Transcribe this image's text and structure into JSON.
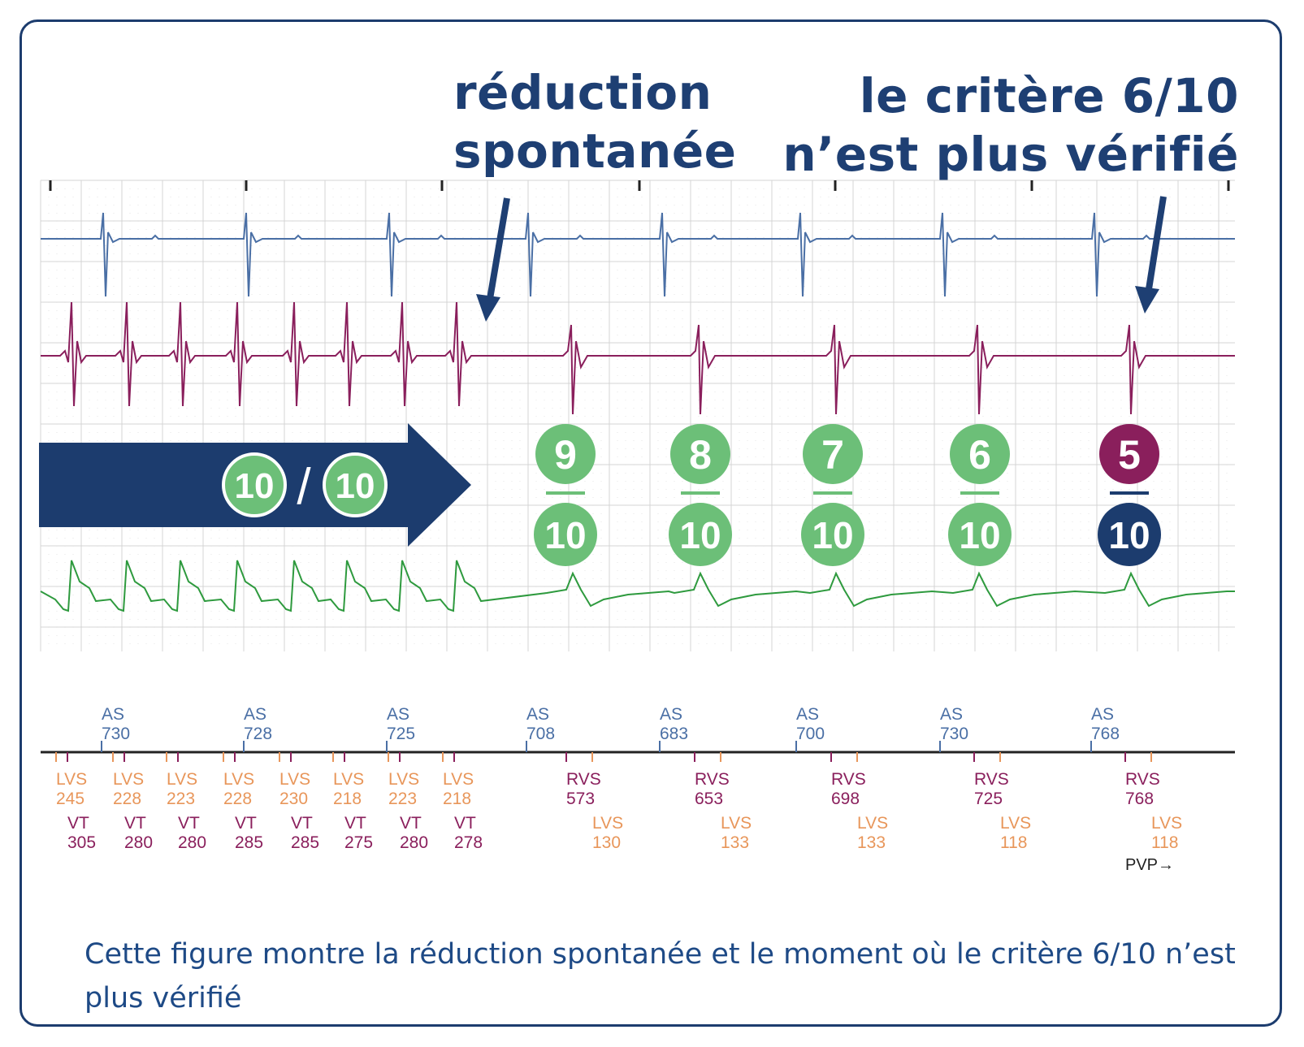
{
  "heading_left": [
    "réduction",
    "spontanée"
  ],
  "heading_right": [
    "le critère 6/10",
    "n’est plus vérifié"
  ],
  "arrow_label": {
    "num": "10",
    "sep": "/",
    "den": "10"
  },
  "counters": [
    {
      "num": "9",
      "den": "10",
      "num_color": "#6cbf78",
      "den_color": "#6cbf78"
    },
    {
      "num": "8",
      "den": "10",
      "num_color": "#6cbf78",
      "den_color": "#6cbf78"
    },
    {
      "num": "7",
      "den": "10",
      "num_color": "#6cbf78",
      "den_color": "#6cbf78"
    },
    {
      "num": "6",
      "den": "10",
      "num_color": "#6cbf78",
      "den_color": "#6cbf78"
    },
    {
      "num": "5",
      "den": "10",
      "num_color": "#8a1f5c",
      "den_color": "#1c3c6e"
    }
  ],
  "markers": {
    "as": [
      {
        "label": "AS",
        "value": "730"
      },
      {
        "label": "AS",
        "value": "728"
      },
      {
        "label": "AS",
        "value": "725"
      },
      {
        "label": "AS",
        "value": "708"
      },
      {
        "label": "AS",
        "value": "683"
      },
      {
        "label": "AS",
        "value": "700"
      },
      {
        "label": "AS",
        "value": "730"
      },
      {
        "label": "AS",
        "value": "768"
      }
    ],
    "lvs_vt": [
      {
        "lvs": "LVS",
        "lvs_value": "245",
        "vt": "VT",
        "vt_value": "305"
      },
      {
        "lvs": "LVS",
        "lvs_value": "228",
        "vt": "VT",
        "vt_value": "280"
      },
      {
        "lvs": "LVS",
        "lvs_value": "223",
        "vt": "VT",
        "vt_value": "280"
      },
      {
        "lvs": "LVS",
        "lvs_value": "228",
        "vt": "VT",
        "vt_value": "285"
      },
      {
        "lvs": "LVS",
        "lvs_value": "230",
        "vt": "VT",
        "vt_value": "285"
      },
      {
        "lvs": "LVS",
        "lvs_value": "218",
        "vt": "VT",
        "vt_value": "275"
      },
      {
        "lvs": "LVS",
        "lvs_value": "223",
        "vt": "VT",
        "vt_value": "280"
      },
      {
        "lvs": "LVS",
        "lvs_value": "218",
        "vt": "VT",
        "vt_value": "278"
      }
    ],
    "rvs": [
      {
        "rvs": "RVS",
        "rvs_value": "573",
        "lvs": "LVS",
        "lvs_value": "130"
      },
      {
        "rvs": "RVS",
        "rvs_value": "653",
        "lvs": "LVS",
        "lvs_value": "133"
      },
      {
        "rvs": "RVS",
        "rvs_value": "698",
        "lvs": "LVS",
        "lvs_value": "133"
      },
      {
        "rvs": "RVS",
        "rvs_value": "725",
        "lvs": "LVS",
        "lvs_value": "118"
      },
      {
        "rvs": "RVS",
        "rvs_value": "768",
        "lvs": "LVS",
        "lvs_value": "118"
      }
    ],
    "pvp": "PVP→"
  },
  "caption": "Cette figure montre la réduction spontanée et le moment où le critère 6/10 n’est plus vérifié",
  "colors": {
    "navy": "#1e3f73",
    "atrial_trace": "#4a6fa5",
    "rv_trace": "#8a1f5c",
    "far_field_trace": "#2e9a3e",
    "counter_green": "#6cbf78",
    "lvs_orange": "#e8965a",
    "grid": "#d4d4d4"
  }
}
